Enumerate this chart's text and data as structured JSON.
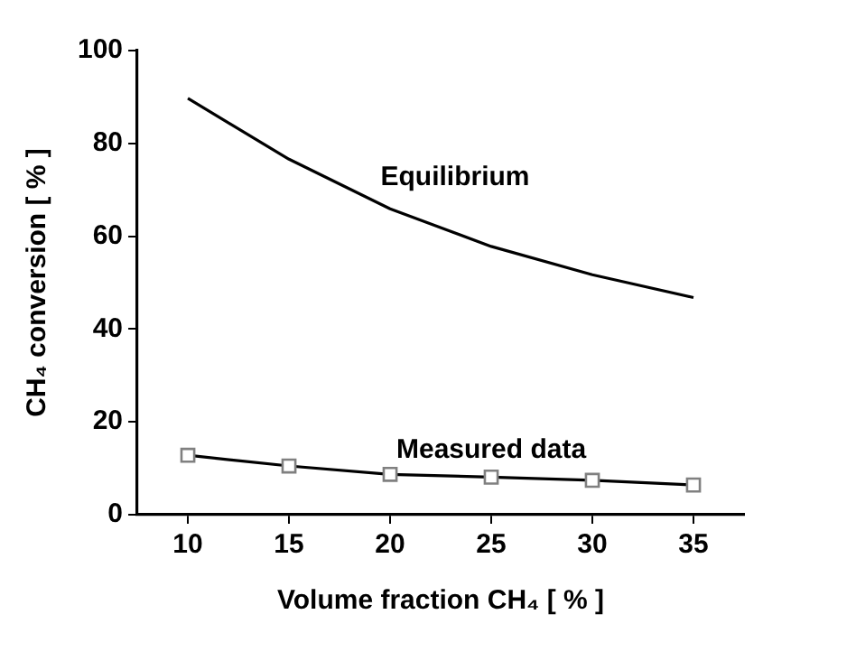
{
  "chart_data": {
    "type": "line",
    "xlabel": "Volume fraction CH₄ [ % ]",
    "ylabel": "CH₄ conversion [ % ]",
    "x": [
      10,
      15,
      20,
      25,
      30,
      35
    ],
    "series": [
      {
        "name": "Equilibrium",
        "color": "#000000",
        "marker": "none",
        "values": [
          89.7,
          76.6,
          65.9,
          57.8,
          51.7,
          46.8
        ]
      },
      {
        "name": "Measured data",
        "color": "#000000",
        "marker": "square",
        "values": [
          12.8,
          10.5,
          8.7,
          8.1,
          7.4,
          6.4
        ]
      }
    ],
    "xlim": [
      7.5,
      37.5
    ],
    "xticks": [
      10,
      15,
      20,
      25,
      30,
      35
    ],
    "ylim": [
      0,
      100
    ],
    "yticks": [
      0,
      20,
      40,
      60,
      80,
      100
    ],
    "grid": false,
    "legend": false,
    "line_style": "solid"
  }
}
